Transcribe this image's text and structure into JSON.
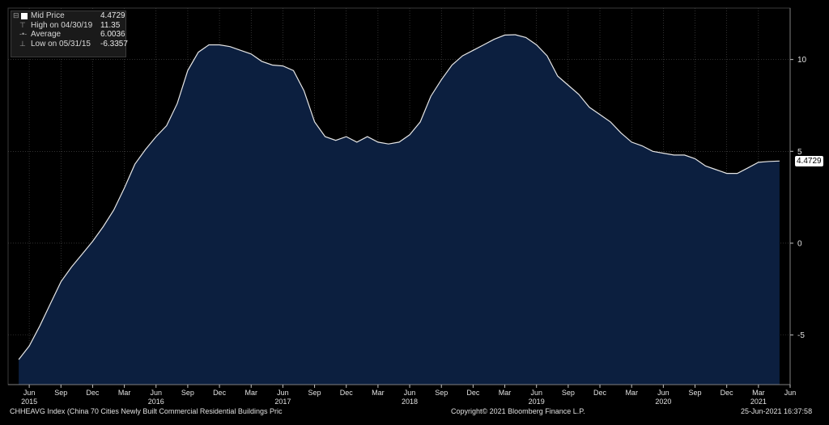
{
  "legend": {
    "rows": [
      {
        "label": "Mid Price",
        "value": "4.4729"
      },
      {
        "label": "High on 04/30/19",
        "value": "11.35"
      },
      {
        "label": "Average",
        "value": "6.0036"
      },
      {
        "label": "Low on 05/31/15",
        "value": "-6.3357"
      }
    ]
  },
  "footer": {
    "security": "CHHEAVG Index (China 70 Cities Newly Built Commercial Residential Buildings Pric",
    "copyright": "Copyright© 2021 Bloomberg Finance L.P.",
    "timestamp": "25-Jun-2021 16:37:58"
  },
  "last_value_label": "4.4729",
  "colors": {
    "area": "#0c1f3f",
    "line": "#e6e6e6",
    "grid": "#505050",
    "background": "#000000"
  },
  "chart_data": {
    "type": "area",
    "series": [
      {
        "name": "Mid Price",
        "x": [
          "2015-05",
          "2015-06",
          "2015-07",
          "2015-08",
          "2015-09",
          "2015-10",
          "2015-11",
          "2015-12",
          "2016-01",
          "2016-02",
          "2016-03",
          "2016-04",
          "2016-05",
          "2016-06",
          "2016-07",
          "2016-08",
          "2016-09",
          "2016-10",
          "2016-11",
          "2016-12",
          "2017-01",
          "2017-02",
          "2017-03",
          "2017-04",
          "2017-05",
          "2017-06",
          "2017-07",
          "2017-08",
          "2017-09",
          "2017-10",
          "2017-11",
          "2017-12",
          "2018-01",
          "2018-02",
          "2018-03",
          "2018-04",
          "2018-05",
          "2018-06",
          "2018-07",
          "2018-08",
          "2018-09",
          "2018-10",
          "2018-11",
          "2018-12",
          "2019-01",
          "2019-02",
          "2019-03",
          "2019-04",
          "2019-05",
          "2019-06",
          "2019-07",
          "2019-08",
          "2019-09",
          "2019-10",
          "2019-11",
          "2019-12",
          "2020-01",
          "2020-02",
          "2020-03",
          "2020-04",
          "2020-05",
          "2020-06",
          "2020-07",
          "2020-08",
          "2020-09",
          "2020-10",
          "2020-11",
          "2020-12",
          "2021-01",
          "2021-02",
          "2021-03",
          "2021-04",
          "2021-05"
        ],
        "values": [
          -6.3357,
          -5.6,
          -4.5,
          -3.3,
          -2.1,
          -1.3,
          -0.6,
          0.1,
          0.9,
          1.8,
          3.0,
          4.3,
          5.1,
          5.8,
          6.4,
          7.6,
          9.4,
          10.4,
          10.8,
          10.8,
          10.7,
          10.5,
          10.3,
          9.9,
          9.7,
          9.65,
          9.4,
          8.3,
          6.6,
          5.8,
          5.6,
          5.8,
          5.5,
          5.8,
          5.5,
          5.4,
          5.5,
          5.9,
          6.6,
          8.0,
          8.9,
          9.7,
          10.2,
          10.5,
          10.8,
          11.1,
          11.33,
          11.35,
          11.2,
          10.8,
          10.2,
          9.1,
          8.6,
          8.1,
          7.4,
          7.0,
          6.6,
          6.0,
          5.5,
          5.3,
          5.0,
          4.9,
          4.8,
          4.8,
          4.6,
          4.2,
          4.0,
          3.8,
          3.8,
          4.1,
          4.4,
          4.45,
          4.4729
        ]
      }
    ],
    "x_ticks": [
      {
        "date": "2015-06",
        "month": "Jun",
        "year": "2015"
      },
      {
        "date": "2015-09",
        "month": "Sep"
      },
      {
        "date": "2015-12",
        "month": "Dec"
      },
      {
        "date": "2016-03",
        "month": "Mar"
      },
      {
        "date": "2016-06",
        "month": "Jun",
        "year": "2016"
      },
      {
        "date": "2016-09",
        "month": "Sep"
      },
      {
        "date": "2016-12",
        "month": "Dec"
      },
      {
        "date": "2017-03",
        "month": "Mar"
      },
      {
        "date": "2017-06",
        "month": "Jun",
        "year": "2017"
      },
      {
        "date": "2017-09",
        "month": "Sep"
      },
      {
        "date": "2017-12",
        "month": "Dec"
      },
      {
        "date": "2018-03",
        "month": "Mar"
      },
      {
        "date": "2018-06",
        "month": "Jun",
        "year": "2018"
      },
      {
        "date": "2018-09",
        "month": "Sep"
      },
      {
        "date": "2018-12",
        "month": "Dec"
      },
      {
        "date": "2019-03",
        "month": "Mar"
      },
      {
        "date": "2019-06",
        "month": "Jun",
        "year": "2019"
      },
      {
        "date": "2019-09",
        "month": "Sep"
      },
      {
        "date": "2019-12",
        "month": "Dec"
      },
      {
        "date": "2020-03",
        "month": "Mar"
      },
      {
        "date": "2020-06",
        "month": "Jun",
        "year": "2020"
      },
      {
        "date": "2020-09",
        "month": "Sep"
      },
      {
        "date": "2020-12",
        "month": "Dec"
      },
      {
        "date": "2021-03",
        "month": "Mar",
        "year": "2021"
      },
      {
        "date": "2021-06",
        "month": "Jun"
      }
    ],
    "y_ticks": [
      10,
      5,
      0,
      -5
    ],
    "y_tick_labels": [
      "10",
      "5",
      "0",
      "-5"
    ],
    "ylim": [
      -7.7,
      12.8
    ],
    "xlim": [
      "2015-04",
      "2021-06"
    ],
    "grid": true,
    "axis_side": "right",
    "legend_position": "top-left"
  }
}
